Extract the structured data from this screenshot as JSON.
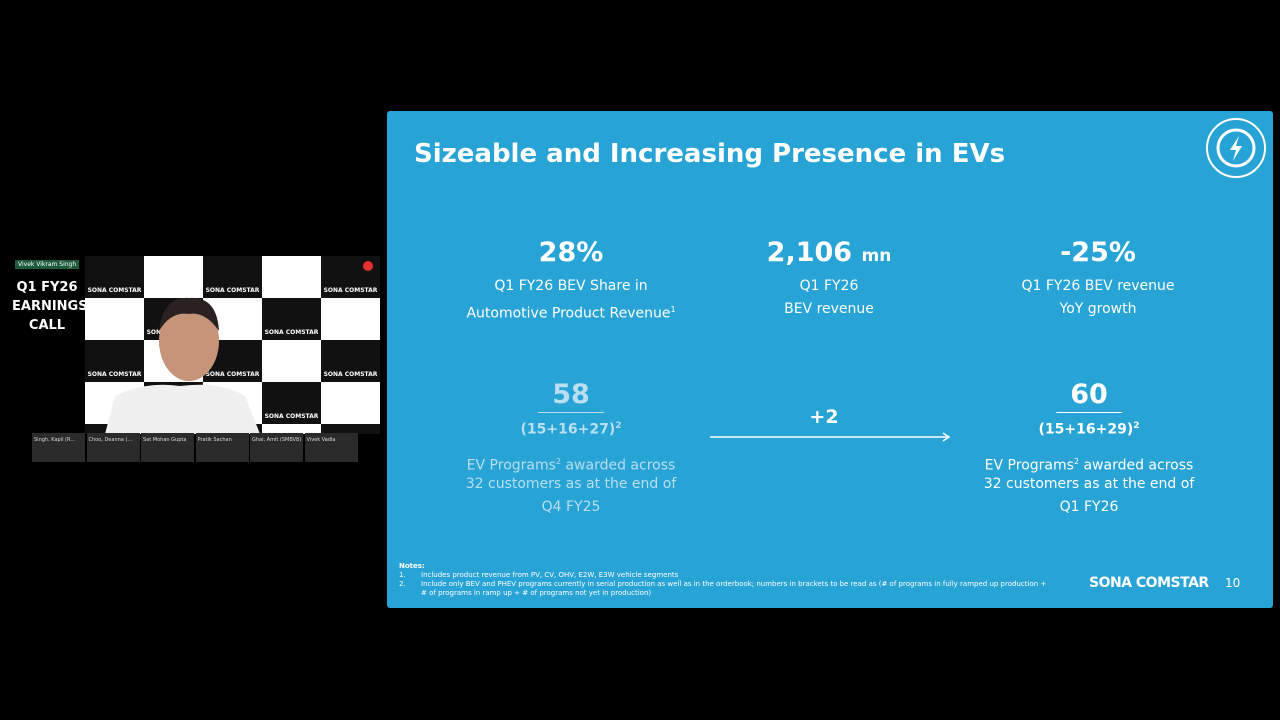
{
  "video": {
    "speaker_tag": "Vivek Vikram Singh",
    "event_title": [
      "Q1 FY26",
      "EARNINGS",
      "CALL"
    ],
    "brand": "SONA COMSTAR",
    "participants": [
      "Singh, Kapil (R...",
      "Choo, Deanna (...",
      "Sat Mohan Gupta",
      "Pratik Sachan",
      "Ghai, Amit (SMBV8)",
      "Vivek Vadla"
    ]
  },
  "slide": {
    "title": "Sizeable and Increasing Presence in EVs",
    "metrics": [
      {
        "value": "28%",
        "lines": [
          "Q1 FY26 BEV Share in",
          "Automotive Product Revenue"
        ],
        "sup": "1"
      },
      {
        "value": "2,106",
        "unit": "mn",
        "lines": [
          "Q1 FY26",
          "BEV revenue"
        ]
      },
      {
        "value": "-25%",
        "lines": [
          "Q1 FY26 BEV revenue",
          "YoY growth"
        ]
      }
    ],
    "programs": [
      {
        "value": "58",
        "breakdown": "(15+16+27)",
        "sup": "2",
        "desc_start": "EV Programs",
        "desc_sup": "2",
        "desc_end": " awarded across",
        "lines": [
          "32 customers as at the end of",
          "Q4 FY25"
        ]
      },
      {
        "value": "60",
        "breakdown": "(15+16+29)",
        "sup": "2",
        "desc_start": "EV Programs",
        "desc_sup": "2",
        "desc_end": " awarded across",
        "lines": [
          "32 customers as at the end of",
          "Q1 FY26"
        ]
      }
    ],
    "change": "+2",
    "notes": {
      "heading": "Notes:",
      "items": [
        {
          "num": "1.",
          "text": "Includes product revenue from PV, CV, OHV, E2W, E3W vehicle segments"
        },
        {
          "num": "2.",
          "text": "Include only BEV and PHEV programs currently in serial production as well as in the orderbook; numbers in brackets to be read as (# of programs in fully ramped up production + # of programs in ramp up + # of programs not yet in production)"
        }
      ]
    },
    "logo": "SONA COMSTAR",
    "page": "10"
  }
}
